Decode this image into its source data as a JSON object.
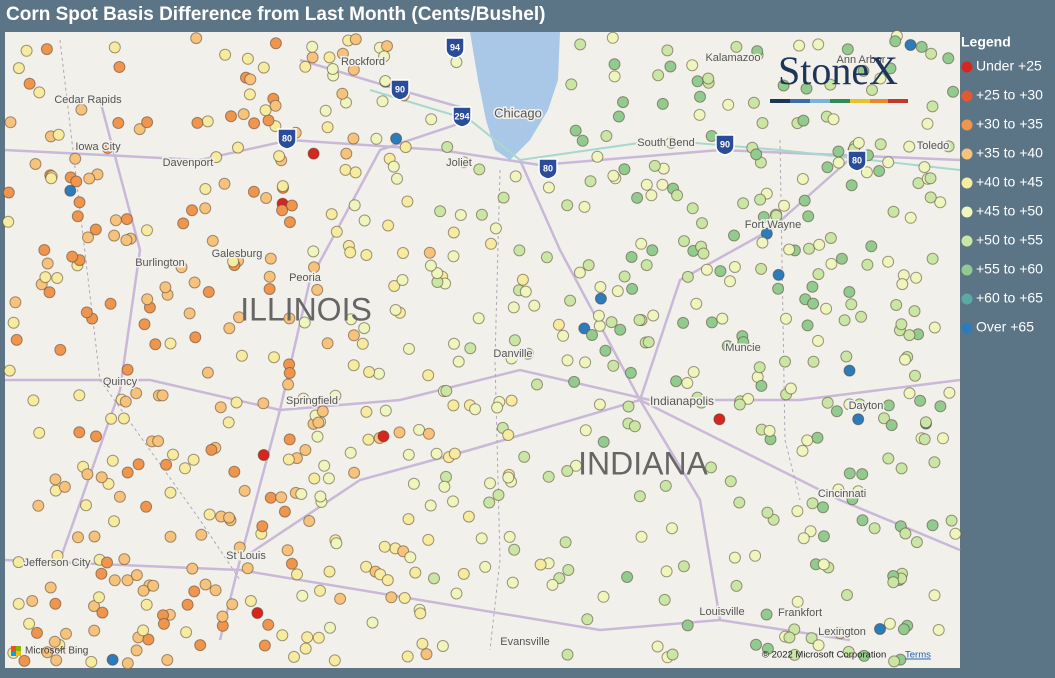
{
  "header": {
    "title": "Corn Spot Basis Difference from Last Month (Cents/Bushel)"
  },
  "legend": {
    "title": "Legend",
    "items": [
      {
        "label": "Under +25",
        "color": "#d7261e"
      },
      {
        "label": "+25 to +30",
        "color": "#e8582f"
      },
      {
        "label": "+30 to +35",
        "color": "#f0954d"
      },
      {
        "label": "+35 to +40",
        "color": "#f6c27c"
      },
      {
        "label": "+40 to +45",
        "color": "#f6eb9e"
      },
      {
        "label": "+45 to +50",
        "color": "#eef5bd"
      },
      {
        "label": "+50 to +55",
        "color": "#c9e6a4"
      },
      {
        "label": "+55 to +60",
        "color": "#92cb8f"
      },
      {
        "label": "+60 to +65",
        "color": "#5ba9a3"
      },
      {
        "label": "Over +65",
        "color": "#2c7bbb"
      }
    ]
  },
  "logo": "StoneX",
  "map": {
    "places": [
      "Cedar Rapids",
      "Iowa City",
      "Davenport",
      "Rockford",
      "Chicago",
      "Kalamazoo",
      "Ann Arbor",
      "Toledo",
      "South Bend",
      "Joliet",
      "Galesburg",
      "Burlington",
      "Peoria",
      "ILLINOIS",
      "Quincy",
      "Springfield",
      "Danville",
      "Muncie",
      "Fort Wayne",
      "Indianapolis",
      "Dayton",
      "INDIANA",
      "Cincinnati",
      "St Louis",
      "Jefferson City",
      "Louisville",
      "Frankfort",
      "Lexington",
      "Evansville"
    ],
    "interstates": [
      "94",
      "90",
      "294",
      "80",
      "80",
      "90",
      "80"
    ],
    "attribution": {
      "provider": "Microsoft Bing",
      "copyright": "© 2022 Microsoft Corporation",
      "terms": "Terms"
    }
  }
}
